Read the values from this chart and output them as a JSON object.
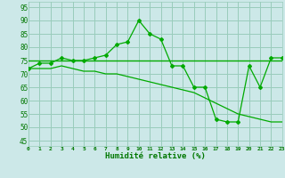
{
  "x": [
    0,
    1,
    2,
    3,
    4,
    5,
    6,
    7,
    8,
    9,
    10,
    11,
    12,
    13,
    14,
    15,
    16,
    17,
    18,
    19,
    20,
    21,
    22,
    23
  ],
  "line1_y": [
    72,
    74,
    74,
    76,
    75,
    75,
    76,
    77,
    81,
    82,
    90,
    85,
    83,
    73,
    73,
    65,
    65,
    53,
    52,
    52,
    73,
    65,
    76,
    76
  ],
  "line2_y": [
    75,
    75,
    75,
    75,
    75,
    75,
    75,
    75,
    75,
    75,
    75,
    75,
    75,
    75,
    75,
    75,
    75,
    75,
    75,
    75,
    75,
    75,
    75,
    75
  ],
  "line3_y": [
    72,
    72,
    72,
    73,
    72,
    71,
    71,
    70,
    70,
    69,
    68,
    67,
    66,
    65,
    64,
    63,
    61,
    59,
    57,
    55,
    54,
    53,
    52,
    52
  ],
  "line_color": "#00aa00",
  "bg_color": "#cce8e8",
  "grid_color": "#99ccbb",
  "xlabel": "Humidité relative (%)",
  "xlabel_color": "#007700",
  "tick_color": "#007700",
  "ylim": [
    43,
    97
  ],
  "xlim": [
    0,
    23
  ],
  "yticks": [
    45,
    50,
    55,
    60,
    65,
    70,
    75,
    80,
    85,
    90,
    95
  ],
  "xticks": [
    0,
    1,
    2,
    3,
    4,
    5,
    6,
    7,
    8,
    9,
    10,
    11,
    12,
    13,
    14,
    15,
    16,
    17,
    18,
    19,
    20,
    21,
    22,
    23
  ]
}
